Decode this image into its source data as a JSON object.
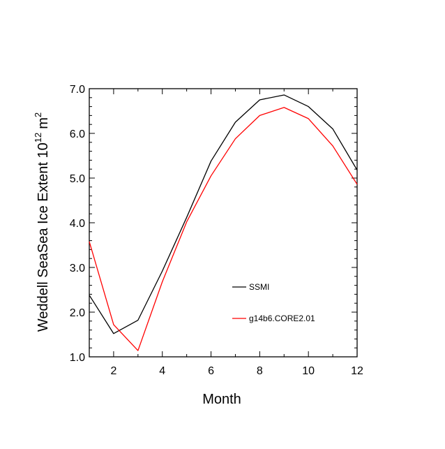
{
  "chart_data": {
    "type": "line",
    "title": "",
    "xlabel": "Month",
    "ylabel": "Weddell SeaSea Ice Extent 10",
    "ylabel_superscript": "12",
    "ylabel_unit": "m",
    "ylabel_unit_superscript": "2",
    "xlim": [
      1,
      12
    ],
    "ylim": [
      1.0,
      7.0
    ],
    "x_ticks": [
      2,
      4,
      6,
      8,
      10,
      12
    ],
    "x_tick_labels": [
      "2",
      "4",
      "6",
      "8",
      "10",
      "12"
    ],
    "y_ticks": [
      1.0,
      2.0,
      3.0,
      4.0,
      5.0,
      6.0,
      7.0
    ],
    "y_tick_labels": [
      "1.0",
      "2.0",
      "3.0",
      "4.0",
      "5.0",
      "6.0",
      "7.0"
    ],
    "grid": false,
    "legend_position": "lower-right",
    "x": [
      1,
      2,
      3,
      4,
      5,
      6,
      7,
      8,
      9,
      10,
      11,
      12
    ],
    "series": [
      {
        "name": "SSMI",
        "color": "#000000",
        "values": [
          2.38,
          1.52,
          1.82,
          2.92,
          4.12,
          5.38,
          6.25,
          6.75,
          6.86,
          6.6,
          6.1,
          5.18
        ]
      },
      {
        "name": "g14b6.CORE2.01",
        "color": "#ff0000",
        "values": [
          3.58,
          1.72,
          1.14,
          2.68,
          4.02,
          5.05,
          5.88,
          6.4,
          6.58,
          6.33,
          5.72,
          4.86
        ]
      }
    ]
  }
}
